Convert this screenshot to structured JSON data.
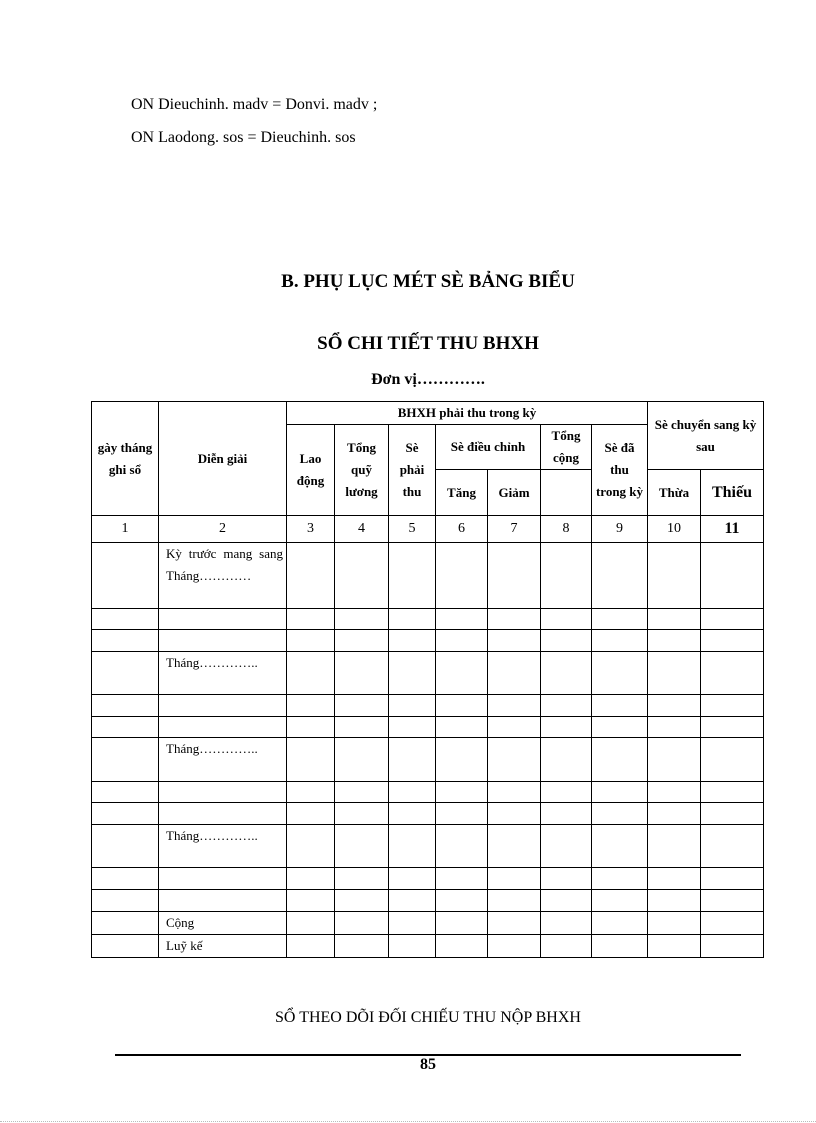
{
  "code_lines": [
    "ON Dieuchinh.  madv = Donvi.  madv ;",
    "ON Laodong. sos = Dieuchinh.  sos"
  ],
  "section_title": "B. PHỤ LỤC MÉT SÈ BẢNG BIỂU",
  "table_title": "SỔ CHI TIẾT THU BHXH",
  "unit_label": "Đơn vị………….",
  "table": {
    "headers": {
      "date": "gày tháng ghi sổ",
      "description": "Diễn giải",
      "group_due": "BHXH phải thu trong kỳ",
      "labor": "Lao động",
      "salary_fund": "Tổng quỹ lương",
      "amount_due": "Sè phải thu",
      "adjustment": "Sè điều chỉnh",
      "increase": "Tăng",
      "decrease": "Giảm",
      "total": "Tổng cộng",
      "collected": "Sè đã thu trong kỳ",
      "carry_over": "Sè chuyển sang kỳ sau",
      "surplus": "Thừa",
      "deficit": "Thiếu"
    },
    "column_numbers": [
      "1",
      "2",
      "3",
      "4",
      "5",
      "6",
      "7",
      "8",
      "9",
      "10",
      "11"
    ],
    "rows": [
      {
        "desc": "Kỳ trước mang sang Tháng…………"
      },
      {
        "desc": ""
      },
      {
        "desc": ""
      },
      {
        "desc": "Tháng………….."
      },
      {
        "desc": ""
      },
      {
        "desc": ""
      },
      {
        "desc": "Tháng………….."
      },
      {
        "desc": ""
      },
      {
        "desc": ""
      },
      {
        "desc": "Tháng………….."
      },
      {
        "desc": ""
      },
      {
        "desc": ""
      },
      {
        "desc": "Cộng"
      },
      {
        "desc": "Luỹ kế"
      }
    ]
  },
  "next_title": "SỔ THEO DÕI ĐỐI CHIẾU THU NỘP BHXH",
  "page_number": "85"
}
